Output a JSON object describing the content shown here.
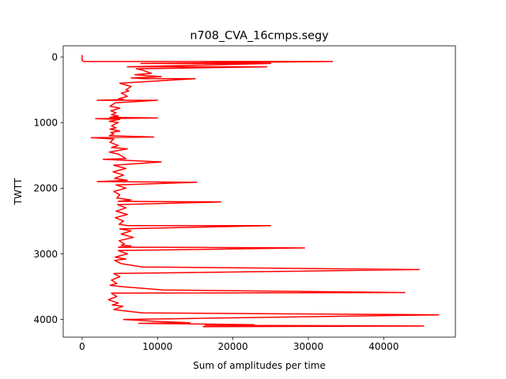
{
  "chart_data": {
    "type": "line",
    "title": "n708_CVA_16cmps.segy",
    "xlabel": "Sum of amplitudes per time",
    "ylabel": "TWTT",
    "xlim": [
      -2500,
      49500
    ],
    "ylim": [
      4270,
      -170
    ],
    "y_inverted": true,
    "xticks": [
      0,
      10000,
      20000,
      30000,
      40000
    ],
    "xtick_labels": [
      "0",
      "10000",
      "20000",
      "30000",
      "40000"
    ],
    "yticks": [
      0,
      1000,
      2000,
      3000,
      4000
    ],
    "ytick_labels": [
      "0",
      "1000",
      "2000",
      "3000",
      "4000"
    ],
    "grid": false,
    "line_color": "#ff0000",
    "series": [
      {
        "x": [
          0,
          0,
          200,
          33200,
          7800,
          25000,
          6000,
          24500,
          7200,
          8000,
          9200,
          7000,
          10500,
          6500,
          8200,
          15000,
          5000,
          6500,
          5800,
          6200,
          5200,
          6000,
          4800,
          5500,
          2000,
          10000,
          4400,
          3700,
          5000,
          3800,
          4500,
          3900,
          4800,
          3700,
          10000,
          1800,
          5000,
          3600,
          4800,
          3900,
          4500,
          3700,
          5000,
          3800,
          4200,
          3600,
          9500,
          1200,
          4200,
          3700,
          4800,
          3900,
          6000,
          3600,
          4800,
          5800,
          2800,
          6500,
          10500,
          4200,
          5800,
          4100,
          5500,
          4300,
          6000,
          2000,
          15200,
          4500,
          5800,
          4200,
          5000,
          4600,
          6500,
          4800,
          18400,
          4700,
          5800,
          4500,
          6000,
          4400,
          5500,
          4900,
          6000,
          25000,
          5000,
          6500,
          5200,
          6800,
          4900,
          5600,
          5200,
          6500,
          4800,
          8800,
          29500,
          4800,
          6000,
          4400,
          5800,
          4300,
          5200,
          8000,
          44700,
          4200,
          5000,
          3900,
          4600,
          3700,
          5200,
          10800,
          42800,
          3900,
          4600,
          3500,
          4800,
          4000,
          5400,
          4200,
          8000,
          47300,
          5500,
          10000,
          14300,
          7500,
          22800,
          16300,
          45300,
          16000
        ],
        "y": [
          -30,
          50,
          70,
          70,
          100,
          100,
          150,
          150,
          180,
          200,
          250,
          270,
          300,
          320,
          330,
          330,
          400,
          450,
          500,
          520,
          550,
          600,
          640,
          650,
          660,
          660,
          700,
          750,
          780,
          820,
          850,
          880,
          900,
          920,
          930,
          940,
          950,
          980,
          1000,
          1050,
          1080,
          1100,
          1130,
          1150,
          1170,
          1200,
          1220,
          1230,
          1250,
          1300,
          1350,
          1380,
          1400,
          1450,
          1480,
          1550,
          1560,
          1580,
          1600,
          1650,
          1700,
          1750,
          1800,
          1850,
          1880,
          1900,
          1910,
          1950,
          2000,
          2050,
          2100,
          2150,
          2180,
          2200,
          2210,
          2250,
          2300,
          2350,
          2400,
          2450,
          2500,
          2550,
          2570,
          2570,
          2620,
          2650,
          2700,
          2750,
          2800,
          2850,
          2870,
          2880,
          2900,
          2900,
          2910,
          2950,
          3000,
          3050,
          3080,
          3100,
          3150,
          3200,
          3240,
          3300,
          3350,
          3400,
          3450,
          3480,
          3500,
          3550,
          3590,
          3600,
          3650,
          3700,
          3750,
          3780,
          3800,
          3850,
          3900,
          3930,
          4000,
          4030,
          4050,
          4060,
          4080,
          4090,
          4100,
          4110
        ]
      }
    ]
  }
}
